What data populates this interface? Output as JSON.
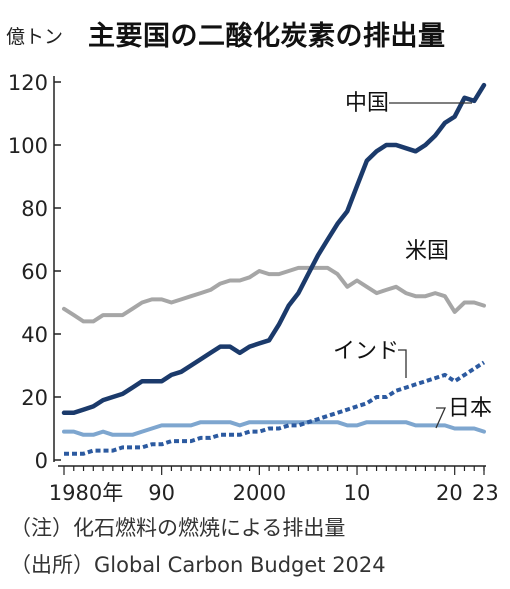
{
  "header": {
    "unit": "億トン",
    "title": "主要国の二酸化炭素の排出量"
  },
  "notes": {
    "note1": "（注）化石燃料の燃焼による排出量",
    "note2": "（出所）Global Carbon Budget 2024"
  },
  "colors": {
    "china": "#1b3a6b",
    "usa": "#a6a6a6",
    "india": "#2c5aa0",
    "japan": "#7ea6cf",
    "axis": "#222222"
  },
  "chart_data": {
    "type": "line",
    "title": "主要国の二酸化炭素の排出量",
    "ylabel": "億トン",
    "xlabel": "",
    "ylim": [
      0,
      120
    ],
    "xlim": [
      1980,
      2023
    ],
    "yticks": [
      0,
      20,
      40,
      60,
      80,
      100,
      120
    ],
    "xticks": [
      {
        "value": 1980,
        "label": "1980年"
      },
      {
        "value": 1990,
        "label": "90"
      },
      {
        "value": 2000,
        "label": "2000"
      },
      {
        "value": 2010,
        "label": "10"
      },
      {
        "value": 2020,
        "label": "20"
      },
      {
        "value": 2023,
        "label": "23"
      }
    ],
    "grid": false,
    "x": [
      1980,
      1981,
      1982,
      1983,
      1984,
      1985,
      1986,
      1987,
      1988,
      1989,
      1990,
      1991,
      1992,
      1993,
      1994,
      1995,
      1996,
      1997,
      1998,
      1999,
      2000,
      2001,
      2002,
      2003,
      2004,
      2005,
      2006,
      2007,
      2008,
      2009,
      2010,
      2011,
      2012,
      2013,
      2014,
      2015,
      2016,
      2017,
      2018,
      2019,
      2020,
      2021,
      2022,
      2023
    ],
    "series": [
      {
        "name": "中国",
        "key": "china",
        "style": "solid",
        "width": 4.5,
        "values": [
          15,
          15,
          16,
          17,
          19,
          20,
          21,
          23,
          25,
          25,
          25,
          27,
          28,
          30,
          32,
          34,
          36,
          36,
          34,
          36,
          37,
          38,
          43,
          49,
          53,
          59,
          65,
          70,
          75,
          79,
          87,
          95,
          98,
          100,
          100,
          99,
          98,
          100,
          103,
          107,
          109,
          115,
          114,
          119
        ]
      },
      {
        "name": "米国",
        "key": "usa",
        "style": "solid",
        "width": 4,
        "values": [
          48,
          46,
          44,
          44,
          46,
          46,
          46,
          48,
          50,
          51,
          51,
          50,
          51,
          52,
          53,
          54,
          56,
          57,
          57,
          58,
          60,
          59,
          59,
          60,
          61,
          61,
          61,
          61,
          59,
          55,
          57,
          55,
          53,
          54,
          55,
          53,
          52,
          52,
          53,
          52,
          47,
          50,
          50,
          49
        ]
      },
      {
        "name": "インド",
        "key": "india",
        "style": "dashed",
        "width": 4,
        "values": [
          2,
          2,
          2,
          3,
          3,
          3,
          4,
          4,
          4,
          5,
          5,
          6,
          6,
          6,
          7,
          7,
          8,
          8,
          8,
          9,
          9,
          10,
          10,
          11,
          11,
          12,
          13,
          14,
          15,
          16,
          17,
          18,
          20,
          20,
          22,
          23,
          24,
          25,
          26,
          27,
          25,
          27,
          29,
          31
        ]
      },
      {
        "name": "日本",
        "key": "japan",
        "style": "solid",
        "width": 4,
        "values": [
          9,
          9,
          8,
          8,
          9,
          8,
          8,
          8,
          9,
          10,
          11,
          11,
          11,
          11,
          12,
          12,
          12,
          12,
          11,
          12,
          12,
          12,
          12,
          12,
          12,
          12,
          12,
          12,
          12,
          11,
          11,
          12,
          12,
          12,
          12,
          12,
          11,
          11,
          11,
          11,
          10,
          10,
          10,
          9
        ]
      }
    ],
    "series_labels": [
      {
        "key": "china",
        "text": "中国"
      },
      {
        "key": "usa",
        "text": "米国"
      },
      {
        "key": "india",
        "text": "インド"
      },
      {
        "key": "japan",
        "text": "日本"
      }
    ]
  }
}
